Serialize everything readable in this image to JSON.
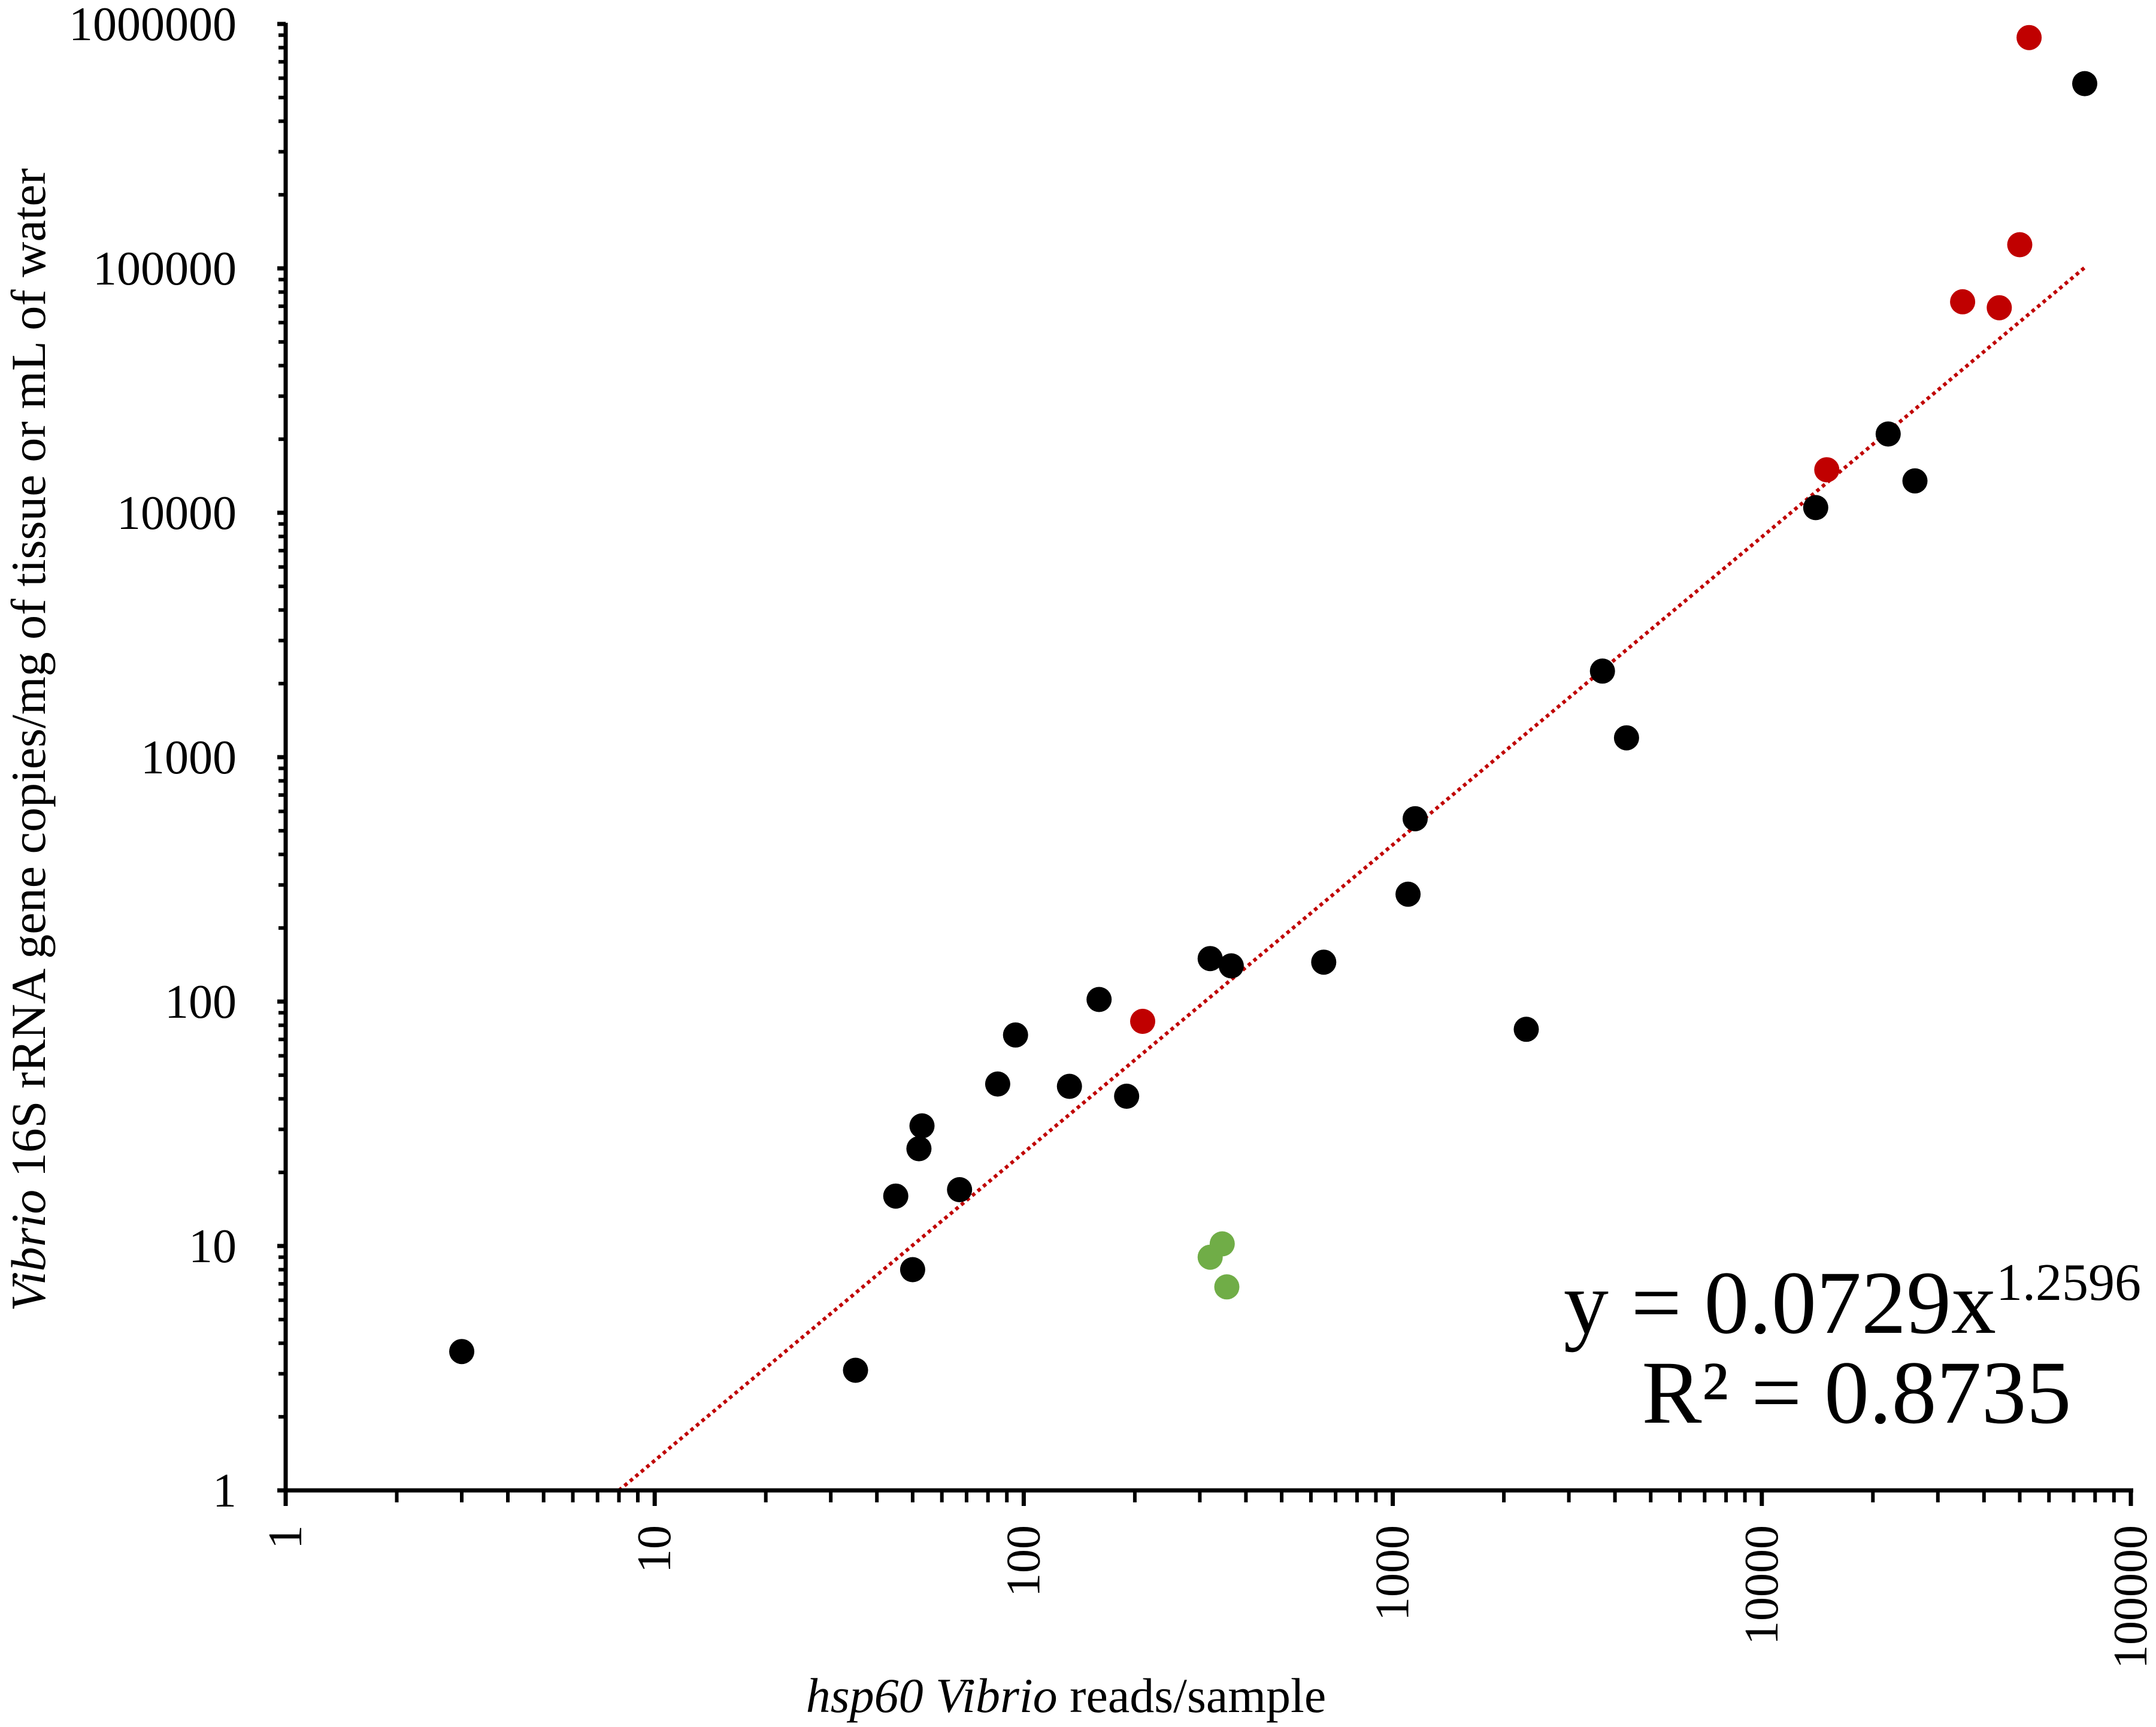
{
  "chart_data": {
    "type": "scatter",
    "xlabel": {
      "italic_part": "hsp60 Vibrio",
      "rest": " reads/sample"
    },
    "ylabel": {
      "italic_part": "Vibrio",
      "rest": " 16S rRNA gene copies/mg of tissue or mL of water"
    },
    "x_scale": "log",
    "y_scale": "log",
    "xlim": [
      1,
      100000
    ],
    "ylim": [
      1,
      1000000
    ],
    "x_ticks": [
      "1",
      "10",
      "100",
      "1000",
      "10000",
      "100000"
    ],
    "y_ticks": [
      "1",
      "10",
      "100",
      "1000",
      "10000",
      "100000",
      "1000000"
    ],
    "grid": false,
    "colors": {
      "black": "#000000",
      "red": "#c00000",
      "green": "#70ad47",
      "trendline": "#c00000"
    },
    "series": [
      {
        "color": "#000000",
        "points": [
          [
            3,
            3.7
          ],
          [
            35,
            3.1
          ],
          [
            45,
            16
          ],
          [
            50,
            8
          ],
          [
            52,
            25
          ],
          [
            53,
            31
          ],
          [
            67,
            17
          ],
          [
            85,
            46
          ],
          [
            95,
            73
          ],
          [
            133,
            45
          ],
          [
            160,
            102
          ],
          [
            190,
            41
          ],
          [
            320,
            150
          ],
          [
            365,
            140
          ],
          [
            650,
            145
          ],
          [
            1100,
            275
          ],
          [
            1150,
            560
          ],
          [
            2300,
            77
          ],
          [
            3700,
            2250
          ],
          [
            4300,
            1200
          ],
          [
            14000,
            10500
          ],
          [
            22000,
            21000
          ],
          [
            26000,
            13500
          ],
          [
            75000,
            570000
          ]
        ]
      },
      {
        "color": "#c00000",
        "points": [
          [
            210,
            83
          ],
          [
            15000,
            15000
          ],
          [
            35000,
            73000
          ],
          [
            44000,
            69000
          ],
          [
            50000,
            125000
          ],
          [
            53000,
            880000
          ]
        ]
      },
      {
        "color": "#70ad47",
        "points": [
          [
            320,
            9
          ],
          [
            345,
            10.2
          ],
          [
            355,
            6.8
          ]
        ]
      }
    ],
    "trendline": {
      "type": "power",
      "a": 0.0729,
      "b": 1.2596,
      "x_range": [
        8.0,
        75000
      ]
    },
    "annotations": {
      "equation": {
        "prefix": "y = 0.0729x",
        "exponent": "1.2596"
      },
      "r_squared": "R² = 0.8735"
    }
  }
}
